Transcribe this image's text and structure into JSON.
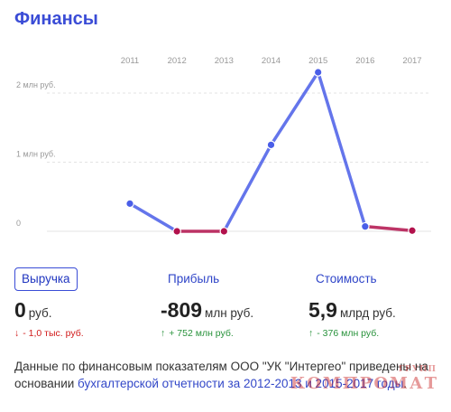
{
  "title": "Финансы",
  "chart_data": {
    "type": "line",
    "x": [
      "2011",
      "2012",
      "2013",
      "2014",
      "2015",
      "2016",
      "2017"
    ],
    "series": [
      {
        "values": [
          0.4,
          0.0,
          0.0,
          1.25,
          2.3,
          0.07,
          0.01
        ],
        "point_kind": [
          "positive",
          "negative",
          "negative",
          "positive",
          "positive",
          "positive",
          "negative"
        ]
      }
    ],
    "y_ticks": [
      {
        "value": 0,
        "label": "0"
      },
      {
        "value": 1,
        "label": "1 млн руб."
      },
      {
        "value": 2,
        "label": "2 млн руб."
      }
    ],
    "ylim": [
      0,
      2.3
    ],
    "colors": {
      "positive": "#4a5ee8",
      "negative": "#b2114c",
      "grid": "#e3e3e3"
    }
  },
  "stats": [
    {
      "label": "Выручка",
      "value": "0",
      "unit": "руб.",
      "change_arrow": "↓",
      "change": "- 1,0 тыс. руб.",
      "change_kind": "neg"
    },
    {
      "label": "Прибыль",
      "value": "-809",
      "unit": "млн руб.",
      "change_arrow": "↑",
      "change": "+ 752 млн руб.",
      "change_kind": "pos"
    },
    {
      "label": "Стоимость",
      "value": "5,9",
      "unit": "млрд руб.",
      "change_arrow": "↑",
      "change": "- 376 млн руб.",
      "change_kind": "pos"
    }
  ],
  "note": {
    "prefix": "Данные по финансовым показателям ООО \"УК \"Интергео\" приведены на основании ",
    "link": "бухгалтерской отчетности за 2012-2013 и 2015-2017 годы",
    "suffix": "."
  },
  "watermark": {
    "main": "КОМПРОМАТ",
    "small": "ГРУПП"
  }
}
